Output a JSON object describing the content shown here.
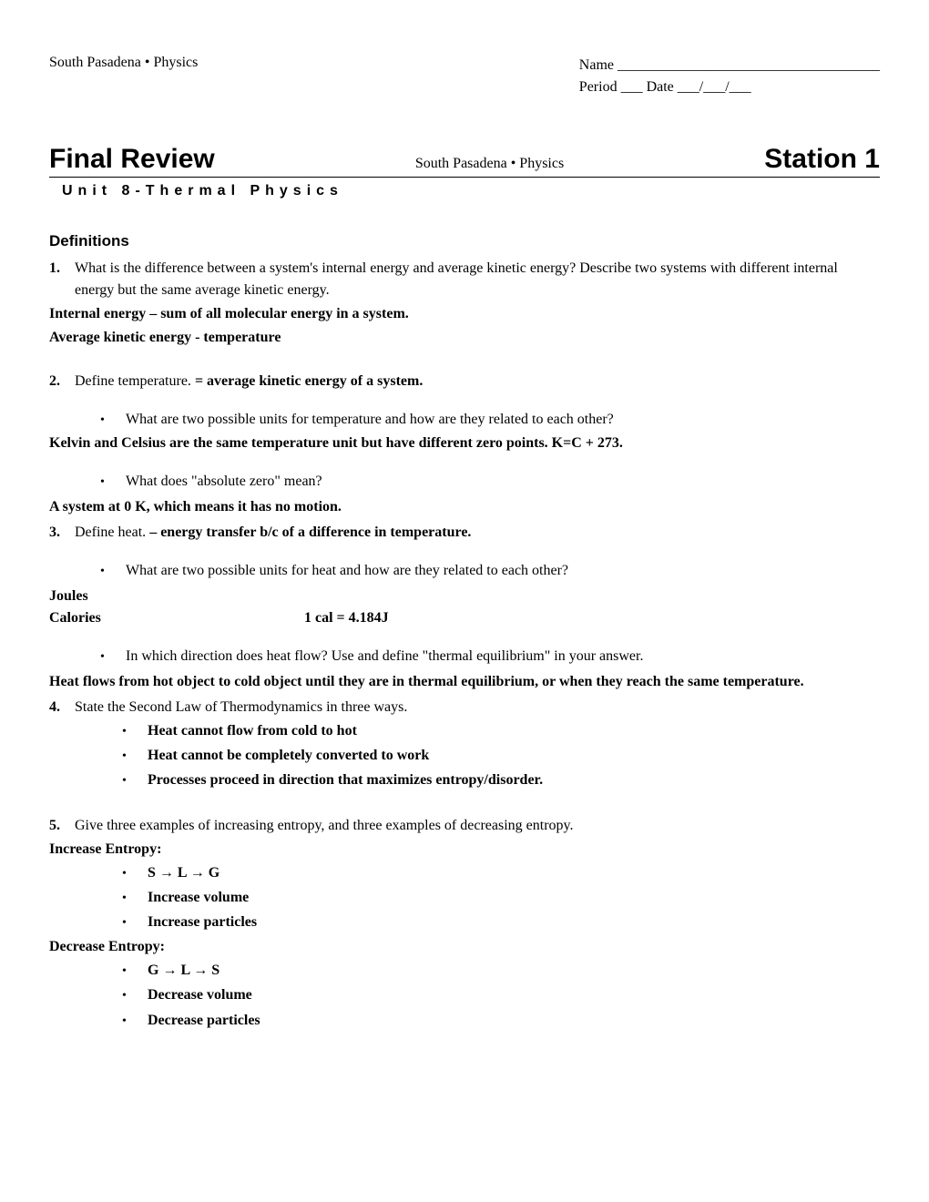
{
  "header": {
    "school_course": "South Pasadena • Physics",
    "name_label": "Name ____________________________________",
    "period_date": "Period ___   Date ___/___/___"
  },
  "title": {
    "main": "Final Review",
    "sub": "South Pasadena • Physics",
    "station": "Station 1",
    "unit": "Unit 8-Thermal Physics"
  },
  "section_heading": "Definitions",
  "q1": {
    "num": "1.",
    "text": "What is the difference between a system's internal energy and average kinetic energy?  Describe two systems with different internal energy but the same average kinetic energy.",
    "ans1": "Internal energy – sum of all molecular energy in a system.",
    "ans2": "Average kinetic energy - temperature"
  },
  "q2": {
    "num": "2.",
    "text": "Define temperature.",
    "inline_ans": " = average kinetic energy of a system.",
    "sub1": "What are two possible units for temperature and how are they related to each other?",
    "ans1": "Kelvin and Celsius are the same temperature unit but have different zero points. K=C + 273.",
    "sub2": "What does \"absolute zero\" mean?",
    "ans2": "A system at 0 K, which means it has no motion."
  },
  "q3": {
    "num": "3.",
    "text": "Define heat. ",
    "inline_ans": " – energy transfer b/c of a difference in temperature.",
    "sub1": "What are two possible units for heat and how are they related to each other?",
    "joules": "Joules",
    "calories": "Calories",
    "cal_eq": "1 cal = 4.184J",
    "sub2": "In which direction does heat flow?  Use and define \"thermal equilibrium\" in your answer.",
    "ans2": "Heat flows from hot object to cold object until they are in thermal equilibrium, or when they reach the same temperature."
  },
  "q4": {
    "num": "4.",
    "text": "State the Second Law of Thermodynamics in three ways.",
    "law1": "Heat cannot flow from cold to hot",
    "law2": "Heat cannot be completely converted to work",
    "law3": "Processes proceed in direction that maximizes entropy/disorder."
  },
  "q5": {
    "num": "5.",
    "text": "Give three examples of increasing entropy, and three examples of decreasing entropy.",
    "inc_label": "Increase Entropy:",
    "inc1": "S → L → G",
    "inc2": "Increase volume",
    "inc3": "Increase particles",
    "dec_label": "Decrease Entropy:",
    "dec1": "G → L → S",
    "dec2": "Decrease volume",
    "dec3": "Decrease particles"
  }
}
